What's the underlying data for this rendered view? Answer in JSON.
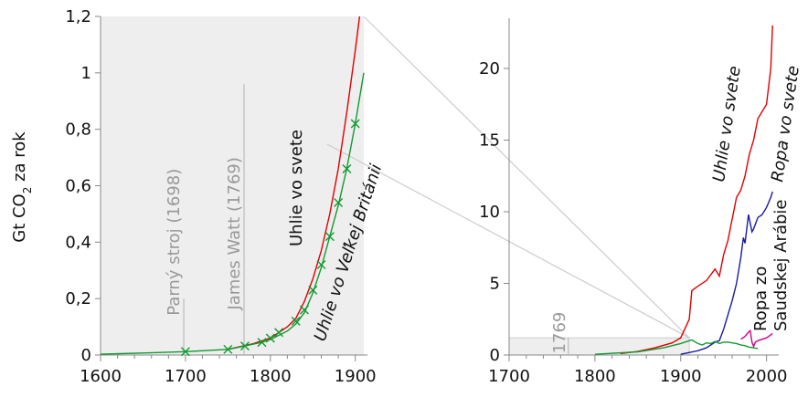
{
  "ylabel_main": "Gt CO",
  "ylabel_sub": "2",
  "ylabel_rest": " za rok",
  "colors": {
    "coal_world": "#e00000",
    "coal_uk": "#109a30",
    "oil_world": "#1a1aa0",
    "oil_saudi": "#d0008c",
    "grey": "#999999",
    "shade": "#eeeeee"
  },
  "chart_data": [
    {
      "type": "line",
      "panel": "left",
      "xlim": [
        1600,
        1910
      ],
      "ylim": [
        0,
        1.2
      ],
      "x_ticks": [
        "1600",
        "1700",
        "1800",
        "1900"
      ],
      "x_tick_values": [
        1600,
        1700,
        1800,
        1900
      ],
      "y_ticks": [
        "0",
        "0,2",
        "0,4",
        "0,6",
        "0,8",
        "1",
        "1,2"
      ],
      "y_tick_values": [
        0,
        0.2,
        0.4,
        0.6,
        0.8,
        1.0,
        1.2
      ],
      "annotations": [
        {
          "text": "Parný stroj (1698)",
          "x": 1698,
          "y_top": 0.2
        },
        {
          "text": "James Watt (1769)",
          "x": 1769,
          "y_top": 0.96
        }
      ],
      "series": [
        {
          "name": "Uhlie vo svete",
          "x": [
            1750,
            1780,
            1800,
            1810,
            1820,
            1830,
            1840,
            1850,
            1860,
            1870,
            1880,
            1890,
            1900,
            1905
          ],
          "y": [
            0.02,
            0.04,
            0.06,
            0.08,
            0.1,
            0.13,
            0.19,
            0.27,
            0.37,
            0.5,
            0.66,
            0.86,
            1.08,
            1.2
          ]
        },
        {
          "name": "Uhlie vo Veľkej Británii",
          "x": [
            1600,
            1650,
            1700,
            1750,
            1770,
            1790,
            1800,
            1810,
            1820,
            1830,
            1840,
            1850,
            1860,
            1870,
            1880,
            1890,
            1900,
            1910
          ],
          "y": [
            0.003,
            0.007,
            0.012,
            0.02,
            0.032,
            0.045,
            0.055,
            0.07,
            0.085,
            0.11,
            0.15,
            0.22,
            0.31,
            0.42,
            0.53,
            0.66,
            0.82,
            1.0
          ],
          "markers_x": [
            1700,
            1750,
            1770,
            1790,
            1800,
            1810,
            1830,
            1840,
            1850,
            1860,
            1870,
            1880,
            1890,
            1900
          ],
          "markers_y": [
            0.012,
            0.02,
            0.032,
            0.045,
            0.06,
            0.08,
            0.12,
            0.16,
            0.23,
            0.32,
            0.42,
            0.54,
            0.66,
            0.82
          ]
        }
      ],
      "labels": [
        {
          "text": "Uhlie vo svete"
        },
        {
          "text": "Uhlie vo Veľkej Británii"
        }
      ]
    },
    {
      "type": "line",
      "panel": "right",
      "xlim": [
        1700,
        2010
      ],
      "ylim": [
        0,
        23.5
      ],
      "x_ticks": [
        "1700",
        "1800",
        "1900",
        "2000"
      ],
      "x_tick_values": [
        1700,
        1800,
        1900,
        2000
      ],
      "y_ticks": [
        "0",
        "5",
        "10",
        "15",
        "20"
      ],
      "y_tick_values": [
        0,
        5,
        10,
        15,
        20
      ],
      "annotations": [
        {
          "text": "1769",
          "x": 1769
        }
      ],
      "series": [
        {
          "name": "Uhlie vo svete",
          "x": [
            1830,
            1850,
            1870,
            1890,
            1900,
            1910,
            1913,
            1920,
            1930,
            1940,
            1945,
            1950,
            1955,
            1960,
            1965,
            1970,
            1975,
            1980,
            1985,
            1990,
            1995,
            2000,
            2005,
            2007
          ],
          "y": [
            0.1,
            0.25,
            0.5,
            0.85,
            1.2,
            2.5,
            4.5,
            4.8,
            5.2,
            6.0,
            5.5,
            7.0,
            8.0,
            9.5,
            11.0,
            11.5,
            12.5,
            14.0,
            15.0,
            16.5,
            17.0,
            17.5,
            20.0,
            23.0
          ]
        },
        {
          "name": "Ropa vo svete",
          "x": [
            1900,
            1920,
            1930,
            1940,
            1945,
            1950,
            1955,
            1960,
            1965,
            1970,
            1973,
            1975,
            1979,
            1983,
            1985,
            1990,
            1995,
            2000,
            2005,
            2007
          ],
          "y": [
            0.05,
            0.3,
            0.5,
            0.9,
            1.0,
            1.8,
            2.8,
            3.8,
            5.0,
            6.8,
            8.2,
            7.8,
            9.8,
            8.6,
            8.8,
            9.6,
            9.8,
            10.3,
            11.0,
            11.4
          ]
        },
        {
          "name": "Ropa zo Saudskej Arábie",
          "x": [
            1970,
            1975,
            1979,
            1981,
            1983,
            1985,
            1987,
            1990,
            1995,
            2000,
            2005,
            2007
          ],
          "y": [
            1.1,
            1.3,
            1.6,
            1.7,
            0.9,
            0.6,
            0.9,
            1.0,
            1.1,
            1.2,
            1.4,
            1.5
          ]
        },
        {
          "name": "Uhlie vo Veľkej Británii",
          "x": [
            1800,
            1850,
            1880,
            1900,
            1910,
            1913,
            1920,
            1925,
            1930,
            1935,
            1940,
            1945,
            1950,
            1955,
            1960,
            1965,
            1970,
            1975,
            1980,
            1985,
            1990
          ],
          "y": [
            0.05,
            0.22,
            0.5,
            0.8,
            1.0,
            1.05,
            0.8,
            0.7,
            0.85,
            0.8,
            0.95,
            0.8,
            0.9,
            0.9,
            0.85,
            0.8,
            0.7,
            0.65,
            0.55,
            0.5,
            0.45
          ]
        }
      ],
      "labels": [
        {
          "text": "Uhlie vo svete"
        },
        {
          "text": "Ropa vo svete"
        },
        {
          "text": "Ropa zo"
        },
        {
          "text": "Saudskej Arábie"
        }
      ]
    }
  ]
}
